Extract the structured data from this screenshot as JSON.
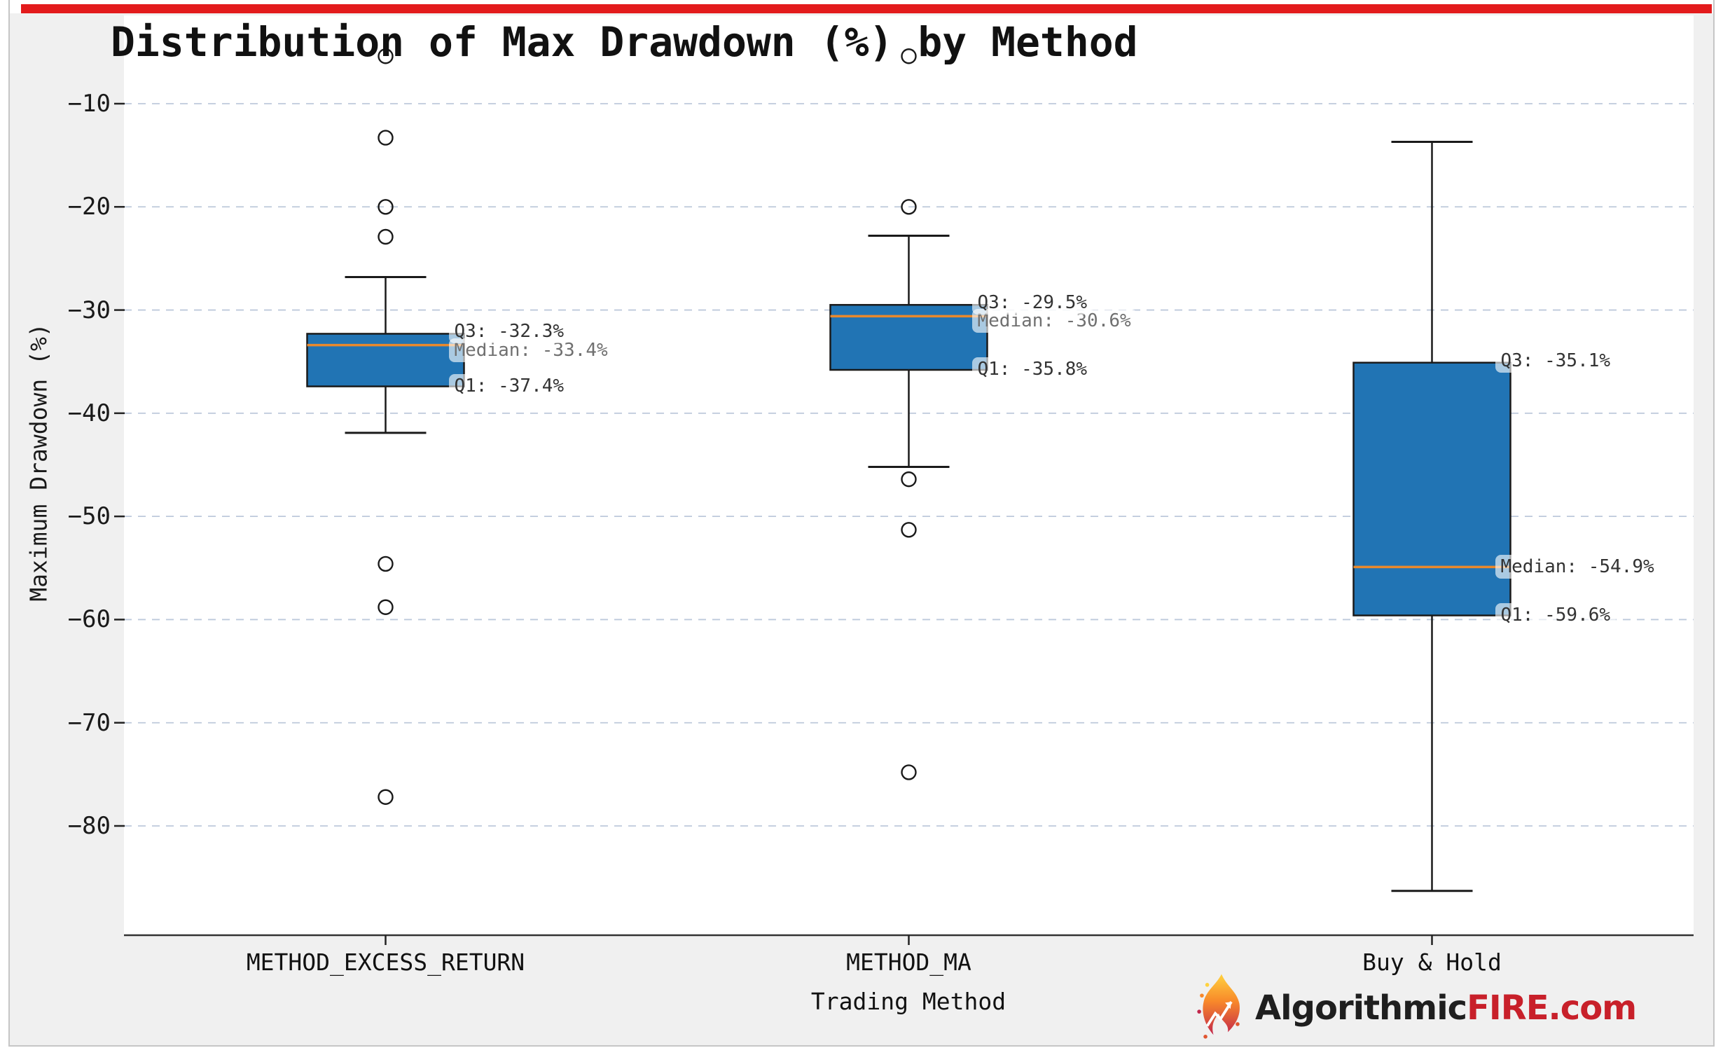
{
  "title": "Distribution of Max Drawdown (%) by Method",
  "chart_data": {
    "type": "box",
    "title": "Distribution of Max Drawdown (%) by Method",
    "xlabel": "Trading Method",
    "ylabel": "Maximum Drawdown (%)",
    "ylim": [
      -90.5,
      -5.0
    ],
    "yticks": [
      -10,
      -20,
      -30,
      -40,
      -50,
      -60,
      -70,
      -80
    ],
    "grid": true,
    "categories": [
      "METHOD_EXCESS_RETURN",
      "METHOD_MA",
      "Buy & Hold"
    ],
    "series": [
      {
        "category": "METHOD_EXCESS_RETURN",
        "whisker_high": -26.8,
        "q3": -32.3,
        "median": -33.4,
        "q1": -37.4,
        "whisker_low": -41.9,
        "outliers": [
          -5.4,
          -13.3,
          -20.0,
          -22.9,
          -54.6,
          -58.8,
          -77.2
        ],
        "labels": {
          "q3": "Q3: -32.3%",
          "median": "Median: -33.4%",
          "q1": "Q1: -37.4%"
        }
      },
      {
        "category": "METHOD_MA",
        "whisker_high": -22.8,
        "q3": -29.5,
        "median": -30.6,
        "q1": -35.8,
        "whisker_low": -45.2,
        "outliers": [
          -5.4,
          -20.0,
          -46.4,
          -51.3,
          -74.8
        ],
        "labels": {
          "q3": "Q3: -29.5%",
          "median": "Median: -30.6%",
          "q1": "Q1: -35.8%"
        }
      },
      {
        "category": "Buy & Hold",
        "whisker_high": -13.7,
        "q3": -35.1,
        "median": -54.9,
        "q1": -59.6,
        "whisker_low": -86.3,
        "outliers": [],
        "labels": {
          "q3": "Q3: -35.1%",
          "median": "Median: -54.9%",
          "q1": "Q1: -59.6%"
        }
      }
    ]
  },
  "logo": {
    "brand_dark": "Algorithmic",
    "brand_red": "FIRE",
    "brand_suffix": ".com"
  },
  "colors": {
    "box_fill": "#2174b4",
    "box_edge": "#1a1a1a",
    "median_line": "#e9892c",
    "grid_line": "#b6c4d8",
    "spine": "#333333",
    "red_bar": "#e31b1c",
    "figure_bg": "#f0f0f0",
    "axes_bg": "#ffffff",
    "logo_red": "#c8202a"
  }
}
